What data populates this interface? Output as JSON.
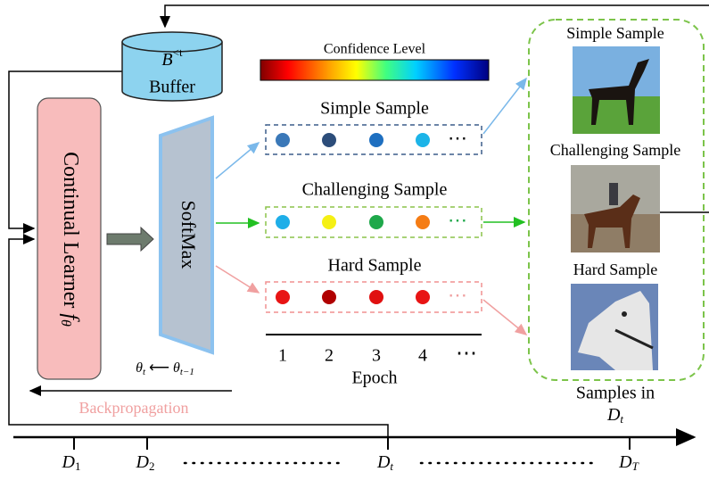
{
  "buffer": {
    "symbol": "B",
    "superscript": "<t",
    "label": "Buffer"
  },
  "learner": {
    "label": "Continual Learner ",
    "param": "f",
    "param_sub": "θ"
  },
  "softmax": "SoftMax",
  "update": {
    "theta_new": "θ",
    "sub_new": "t",
    "arrow": "⟵",
    "theta_old": "θ",
    "sub_old": "t−1"
  },
  "backprop": "Backpropagation",
  "confidence": {
    "label": "Confidence Level"
  },
  "rows": [
    {
      "label": "Simple Sample",
      "more": "⋯"
    },
    {
      "label": "Challenging Sample",
      "more": "⋯"
    },
    {
      "label": "Hard Sample",
      "more": "⋯"
    }
  ],
  "epoch_axis": {
    "ticks": [
      "1",
      "2",
      "3",
      "4",
      "⋯"
    ],
    "label": "Epoch"
  },
  "gallery": {
    "items": [
      "Simple Sample",
      "Challenging Sample",
      "Hard Sample"
    ],
    "caption": "Samples in",
    "set": {
      "base": "D",
      "sub": "t"
    }
  },
  "timeline": {
    "tasks": [
      {
        "base": "D",
        "sub": "1"
      },
      {
        "base": "D",
        "sub": "2"
      },
      {
        "base": "D",
        "sub": "t"
      },
      {
        "base": "D",
        "sub": "T"
      }
    ]
  }
}
